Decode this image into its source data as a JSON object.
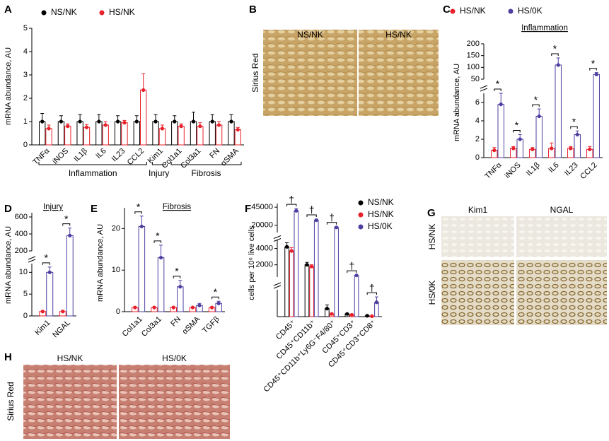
{
  "chart_data": [
    {
      "panel": "A",
      "type": "bar",
      "y_label": "mRNA abundance, AU",
      "legend": "top",
      "groups": [
        {
          "label": "Inflammation",
          "categories": [
            "TNFα",
            "iNOS",
            "IL1β",
            "IL6",
            "IL23",
            "CCL2"
          ]
        },
        {
          "label": "Injury",
          "categories": [
            "Kim1"
          ]
        },
        {
          "label": "Fibrosis",
          "categories": [
            "Col1a1",
            "Col3a1",
            "FN",
            "αSMA"
          ]
        }
      ],
      "series": [
        {
          "name": "NS/NK",
          "color": "#000000",
          "values": [
            1,
            1,
            1,
            1,
            1,
            1,
            1,
            1,
            1,
            1,
            1
          ],
          "errors": [
            0.35,
            0.25,
            0.3,
            0.3,
            0.25,
            0.25,
            0.3,
            0.25,
            0.4,
            0.3,
            0.3
          ]
        },
        {
          "name": "HS/NK",
          "color": "#e8202a",
          "values": [
            0.7,
            0.8,
            0.75,
            0.85,
            0.95,
            2.35,
            0.7,
            0.8,
            0.8,
            0.85,
            0.65
          ],
          "errors": [
            0.15,
            0.1,
            0.12,
            0.15,
            0.1,
            0.7,
            0.15,
            0.1,
            0.15,
            0.15,
            0.1
          ]
        }
      ],
      "y_segments": [
        {
          "ylim": [
            0,
            5
          ],
          "yticks": [
            0,
            1,
            2,
            3,
            4,
            5
          ]
        }
      ]
    },
    {
      "panel": "C",
      "type": "bar",
      "title": "Inflammation",
      "y_label": "mRNA abundance, AU",
      "legend": "top",
      "categories": [
        "TNFα",
        "iNOS",
        "IL1β",
        "IL6",
        "IL23",
        "CCL2"
      ],
      "series": [
        {
          "name": "HS/NK",
          "color": "#e8202a",
          "values": [
            0.8,
            1,
            0.9,
            1,
            1,
            0.9
          ],
          "errors": [
            0.3,
            0.2,
            0.2,
            0.6,
            0.2,
            0.3
          ]
        },
        {
          "name": "HS/0K",
          "color": "#4b3fa0",
          "values": [
            5.8,
            2,
            4.5,
            110,
            2.5,
            70
          ],
          "errors": [
            1.2,
            0.5,
            0.8,
            30,
            0.4,
            8
          ]
        }
      ],
      "significance": [
        "*",
        "*",
        "*",
        "*",
        "*",
        "*"
      ],
      "y_segments": [
        {
          "ylim": [
            0,
            7
          ],
          "yticks": [
            0,
            2,
            4,
            6
          ]
        },
        {
          "ylim": [
            50,
            200
          ],
          "yticks": [
            50,
            100,
            150,
            200
          ]
        }
      ]
    },
    {
      "panel": "D",
      "type": "bar",
      "title": "Injury",
      "y_label": "mRNA abundance, AU",
      "legend": "none",
      "categories": [
        "Kim1",
        "NGAL"
      ],
      "series": [
        {
          "name": "HS/NK",
          "color": "#e8202a",
          "values": [
            1,
            1
          ],
          "errors": [
            0.2,
            0.3
          ]
        },
        {
          "name": "HS/0K",
          "color": "#4b3fa0",
          "values": [
            10,
            380
          ],
          "errors": [
            1.2,
            90
          ]
        }
      ],
      "significance": [
        "*",
        "*"
      ],
      "y_segments": [
        {
          "ylim": [
            0,
            12
          ],
          "yticks": [
            0,
            5,
            10
          ]
        },
        {
          "ylim": [
            200,
            650
          ],
          "yticks": [
            200,
            400,
            600
          ]
        }
      ]
    },
    {
      "panel": "E",
      "type": "bar",
      "title": "Fibrosis",
      "y_label": "mRNA abundance, AU",
      "legend": "none",
      "categories": [
        "Col1a1",
        "Col3a1",
        "FN",
        "αSMA",
        "TGFβ"
      ],
      "series": [
        {
          "name": "HS/NK",
          "color": "#e8202a",
          "values": [
            1,
            1,
            1,
            1,
            1
          ],
          "errors": [
            0.2,
            0.2,
            0.2,
            0.2,
            0.2
          ]
        },
        {
          "name": "HS/0K",
          "color": "#4b3fa0",
          "values": [
            20.5,
            13,
            6,
            1.5,
            2
          ],
          "errors": [
            2.5,
            3,
            1.5,
            0.5,
            0.5
          ]
        }
      ],
      "significance": [
        "*",
        "*",
        "*",
        null,
        "*"
      ],
      "y_segments": [
        {
          "ylim": [
            0,
            25
          ],
          "yticks": [
            0,
            10,
            20
          ]
        }
      ]
    },
    {
      "panel": "F",
      "type": "bar",
      "y_label": "cells per 10⁶ live cells",
      "legend": "right",
      "categories": [
        "CD45⁺",
        "CD45⁺CD11b⁺",
        "CD45⁺CD11b⁺Ly6G⁻F4/80⁺",
        "CD45⁺CD3⁺",
        "CD45⁺CD3⁺CD8⁺"
      ],
      "series": [
        {
          "name": "NS/NK",
          "color": "#000000",
          "values": [
            4200,
            2000,
            90,
            30,
            10
          ],
          "errors": [
            500,
            300,
            40,
            5,
            3
          ]
        },
        {
          "name": "HS/NK",
          "color": "#e8202a",
          "values": [
            3700,
            1800,
            30,
            20,
            5
          ],
          "errors": [
            400,
            200,
            10,
            3,
            2
          ]
        },
        {
          "name": "HS/0K",
          "color": "#4b3fa0",
          "values": [
            40000,
            27000,
            17000,
            700,
            160
          ],
          "errors": [
            3000,
            1500,
            1000,
            50,
            60
          ]
        }
      ],
      "significance": [
        "†",
        "†",
        "†",
        "†",
        "†"
      ],
      "y_segments": [
        {
          "ylim": [
            0,
            300
          ],
          "yticks": []
        },
        {
          "ylim": [
            500,
            5000
          ],
          "yticks": [
            2000,
            4000
          ]
        },
        {
          "ylim": [
            10000,
            50000
          ],
          "yticks": [
            20000,
            45000
          ]
        }
      ]
    }
  ],
  "image_panels": [
    {
      "panel": "B",
      "side_label": "Sirius Red",
      "columns": [
        "NS/NK",
        "HS/NK"
      ]
    },
    {
      "panel": "G",
      "columns": [
        "Kim1",
        "NGAL"
      ],
      "rows": [
        "HS/NK",
        "HS/0K"
      ]
    },
    {
      "panel": "H",
      "side_label": "Sirius Red",
      "columns": [
        "HS/NK",
        "HS/0K"
      ]
    }
  ]
}
